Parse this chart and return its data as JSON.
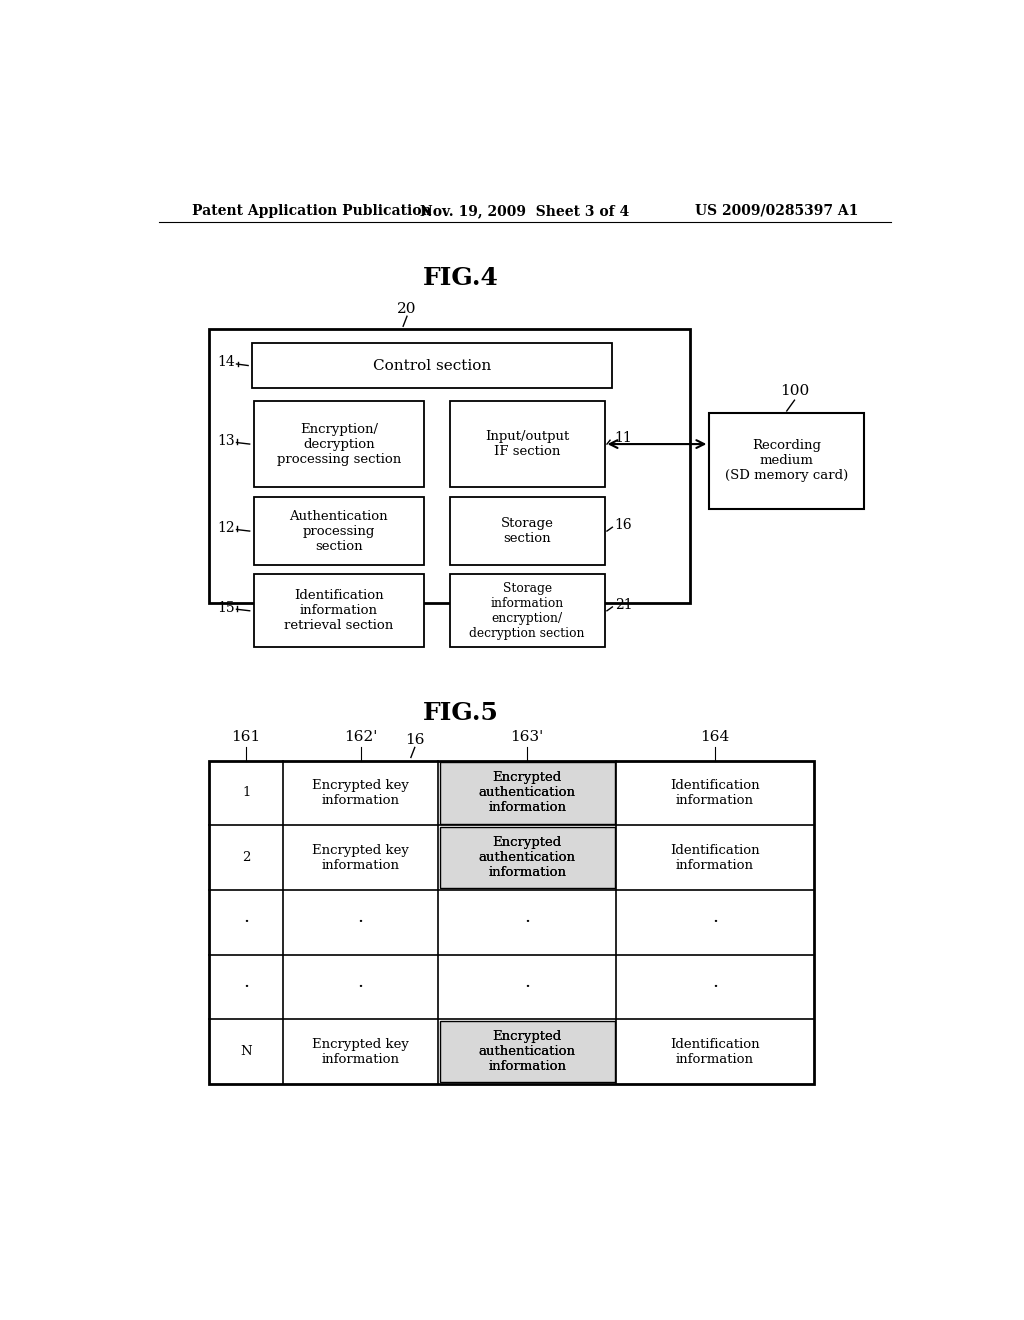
{
  "bg_color": "#ffffff",
  "header_left": "Patent Application Publication",
  "header_mid": "Nov. 19, 2009  Sheet 3 of 4",
  "header_right": "US 2009/0285397 A1",
  "fig4_title": "FIG.4",
  "fig5_title": "FIG.5"
}
